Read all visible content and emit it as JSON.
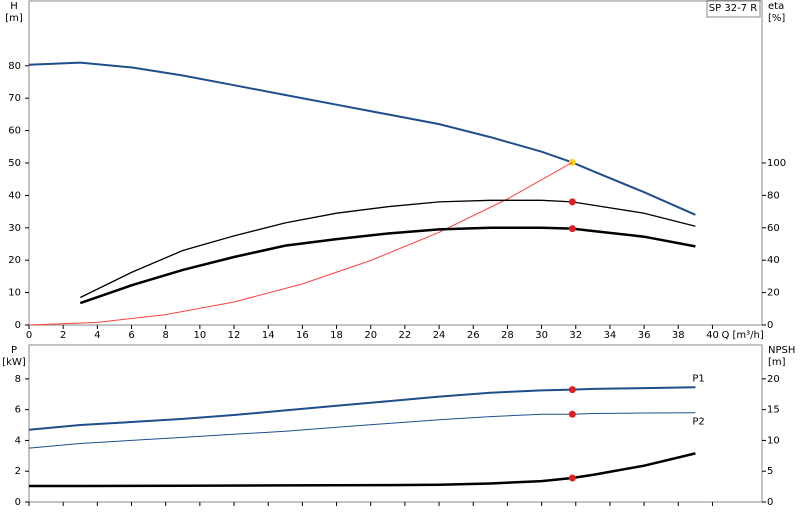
{
  "chart_data": [
    {
      "type": "line",
      "title": "SP 32-7 R",
      "ylabel": [
        "H",
        "[m]"
      ],
      "y2label": [
        "eta",
        "[%]"
      ],
      "xlabel": "Q [m³/h]",
      "xlim": [
        0,
        42.9
      ],
      "xticks": [
        0,
        2,
        4,
        6,
        8,
        10,
        12,
        14,
        16,
        18,
        20,
        22,
        24,
        26,
        28,
        30,
        32,
        34,
        36,
        38,
        40
      ],
      "ylim": [
        0,
        100
      ],
      "yticks": [
        0,
        10,
        20,
        30,
        40,
        50,
        60,
        70,
        80
      ],
      "y2lim": [
        0,
        200
      ],
      "y2ticks": [
        0,
        20,
        40,
        60,
        80,
        100
      ],
      "series": [
        {
          "color": "#1f4e8c",
          "width": 2,
          "x": [
            0,
            3,
            6,
            9,
            12,
            15,
            18,
            21,
            24,
            27,
            30,
            31.8,
            33,
            36,
            39
          ],
          "values": [
            80.3,
            81,
            79.5,
            77,
            74,
            71,
            68,
            65,
            62,
            58,
            53.5,
            50.2,
            47.5,
            41,
            34
          ],
          "marker": {
            "index": 11,
            "color": "#ffd21f"
          }
        },
        {
          "color": "#ff4040",
          "width": 1,
          "x": [
            0,
            4,
            8,
            12,
            16,
            20,
            24,
            28,
            31.8
          ],
          "values": [
            0,
            0.8,
            3.2,
            7.1,
            12.7,
            19.9,
            28.6,
            38.9,
            50.2
          ]
        },
        {
          "color": "#000000",
          "width": 1.3,
          "axis": "y2",
          "x": [
            3,
            6,
            9,
            12,
            15,
            18,
            21,
            24,
            27,
            30,
            31.8,
            33,
            36,
            39
          ],
          "values": [
            17,
            32.5,
            46,
            55,
            63,
            69,
            73,
            76,
            77,
            77,
            76,
            74,
            69,
            61
          ],
          "marker": {
            "index": 10,
            "color": "#e02020"
          }
        },
        {
          "color": "#000000",
          "width": 2.5,
          "axis": "y2",
          "x": [
            3,
            6,
            9,
            12,
            15,
            18,
            21,
            24,
            27,
            30,
            31.8,
            33,
            36,
            39
          ],
          "values": [
            13.5,
            24.5,
            34,
            42,
            49,
            53,
            56.5,
            59,
            60,
            60,
            59.5,
            58,
            54.5,
            48.5
          ],
          "marker": {
            "index": 10,
            "color": "#e02020"
          }
        }
      ]
    },
    {
      "type": "line",
      "ylabel": [
        "P",
        "[kW]"
      ],
      "y2label": [
        "NPSH",
        "[m]"
      ],
      "xlim": [
        0,
        42.9
      ],
      "xticks": [
        0,
        2,
        4,
        6,
        8,
        10,
        12,
        14,
        16,
        18,
        20,
        22,
        24,
        26,
        28,
        30,
        32,
        34,
        36,
        38,
        40
      ],
      "ylim": [
        0,
        10.2
      ],
      "yticks": [
        0,
        2,
        4,
        6,
        8
      ],
      "y2lim": [
        0,
        25.5
      ],
      "y2ticks": [
        0,
        5,
        10,
        15,
        20
      ],
      "series": [
        {
          "name": "P1",
          "color": "#1f4e8c",
          "width": 2,
          "x": [
            0,
            3,
            6,
            9,
            12,
            15,
            18,
            21,
            24,
            27,
            30,
            31.8,
            33,
            36,
            39
          ],
          "values": [
            4.7,
            5,
            5.2,
            5.4,
            5.65,
            5.95,
            6.25,
            6.55,
            6.85,
            7.1,
            7.25,
            7.3,
            7.35,
            7.4,
            7.45
          ],
          "marker": {
            "index": 11,
            "color": "#e02020"
          }
        },
        {
          "name": "P2",
          "color": "#1f4e8c",
          "width": 1,
          "x": [
            0,
            3,
            6,
            9,
            12,
            15,
            18,
            21,
            24,
            27,
            30,
            31.8,
            33,
            36,
            39
          ],
          "values": [
            3.5,
            3.8,
            4,
            4.2,
            4.4,
            4.6,
            4.85,
            5.1,
            5.35,
            5.55,
            5.7,
            5.7,
            5.75,
            5.78,
            5.8
          ],
          "marker": {
            "index": 11,
            "color": "#e02020"
          }
        },
        {
          "color": "#000000",
          "width": 2.5,
          "axis": "y2",
          "x": [
            0,
            3,
            9,
            15,
            21,
            24,
            27,
            30,
            31.8,
            33,
            36,
            39
          ],
          "values": [
            2.6,
            2.6,
            2.65,
            2.7,
            2.75,
            2.8,
            3,
            3.4,
            3.9,
            4.4,
            5.9,
            7.9
          ],
          "marker": {
            "index": 8,
            "color": "#e02020"
          }
        }
      ]
    }
  ]
}
